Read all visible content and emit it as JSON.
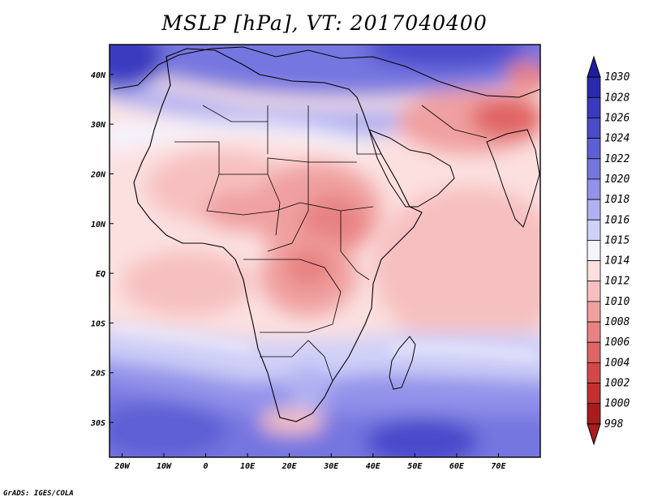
{
  "title": "MSLP [hPa], VT: 2017040400",
  "footer": "GrADS: IGES/COLA",
  "map": {
    "lon_range": [
      -23,
      80
    ],
    "lat_range": [
      -37,
      46
    ],
    "x_ticks": [
      {
        "lon": -20,
        "label": "20W"
      },
      {
        "lon": -10,
        "label": "10W"
      },
      {
        "lon": 0,
        "label": "0"
      },
      {
        "lon": 10,
        "label": "10E"
      },
      {
        "lon": 20,
        "label": "20E"
      },
      {
        "lon": 30,
        "label": "30E"
      },
      {
        "lon": 40,
        "label": "40E"
      },
      {
        "lon": 50,
        "label": "50E"
      },
      {
        "lon": 60,
        "label": "60E"
      },
      {
        "lon": 70,
        "label": "70E"
      }
    ],
    "y_ticks": [
      {
        "lat": 40,
        "label": "40N"
      },
      {
        "lat": 30,
        "label": "30N"
      },
      {
        "lat": 20,
        "label": "20N"
      },
      {
        "lat": 10,
        "label": "10N"
      },
      {
        "lat": 0,
        "label": "EQ"
      },
      {
        "lat": -10,
        "label": "10S"
      },
      {
        "lat": -20,
        "label": "20S"
      },
      {
        "lat": -30,
        "label": "30S"
      }
    ]
  },
  "colorbar": {
    "levels": [
      "1030",
      "1028",
      "1026",
      "1024",
      "1022",
      "1020",
      "1018",
      "1016",
      "1015",
      "1014",
      "1012",
      "1010",
      "1008",
      "1006",
      "1004",
      "1002",
      "1000",
      "998"
    ],
    "colors": [
      "#1e1e9c",
      "#2a2aae",
      "#3a3abf",
      "#4a4acb",
      "#5e5ed6",
      "#7676e0",
      "#9292ea",
      "#b0b0f2",
      "#d0d0f8",
      "#f4f4ff",
      "#fce0e0",
      "#f7c0c0",
      "#f0a0a0",
      "#e88282",
      "#e06464",
      "#d44848",
      "#c43030",
      "#a81c1c"
    ]
  },
  "chart_data": {
    "type": "heatmap",
    "title": "MSLP [hPa], VT: 2017040400",
    "variable": "MSLP",
    "units": "hPa",
    "valid_time": "2017040400",
    "x_ticks": [
      "20W",
      "10W",
      "0",
      "10E",
      "20E",
      "30E",
      "40E",
      "50E",
      "60E",
      "70E"
    ],
    "y_ticks": [
      "40N",
      "30N",
      "20N",
      "10N",
      "EQ",
      "10S",
      "20S",
      "30S"
    ],
    "colorbar_levels": [
      1030,
      1028,
      1026,
      1024,
      1022,
      1020,
      1018,
      1016,
      1015,
      1014,
      1012,
      1010,
      1008,
      1006,
      1004,
      1002,
      1000,
      998
    ]
  }
}
